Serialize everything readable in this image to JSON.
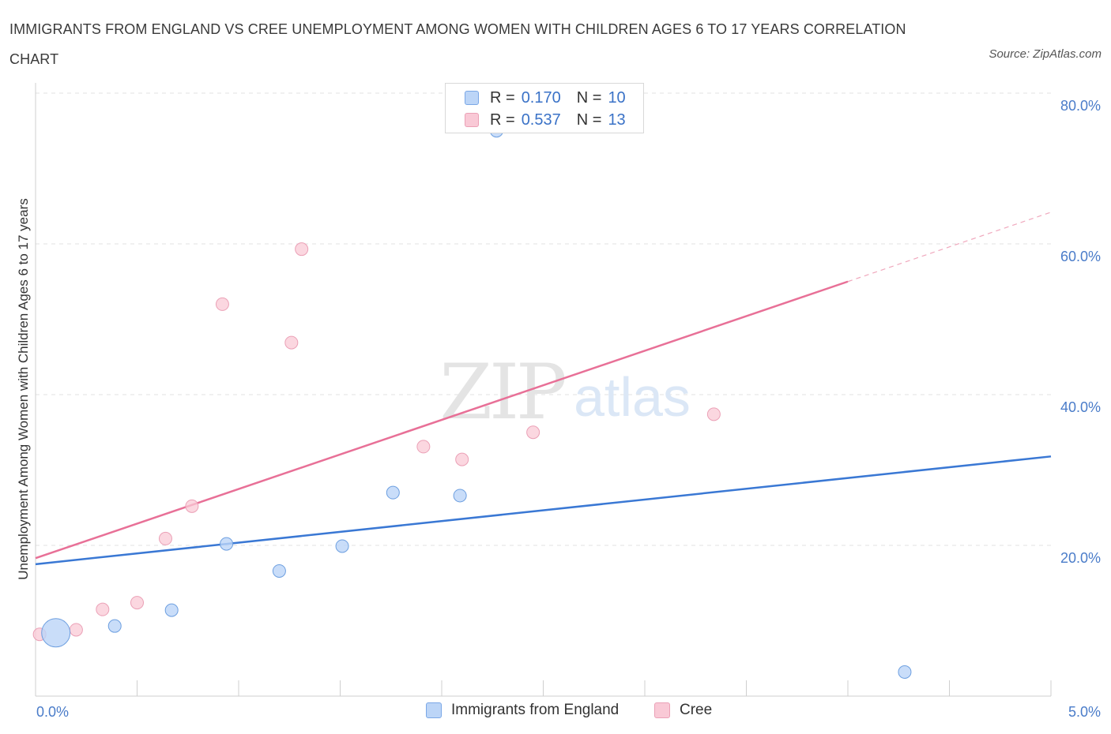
{
  "title": "IMMIGRANTS FROM ENGLAND VS CREE UNEMPLOYMENT AMONG WOMEN WITH CHILDREN AGES 6 TO 17 YEARS CORRELATION CHART",
  "source": "Source: ZipAtlas.com",
  "watermark": {
    "zip": "ZIP",
    "atlas": "atlas"
  },
  "legend_top": [
    {
      "r_label": "R =",
      "r_value": "0.170",
      "n_label": "N =",
      "n_value": "10"
    },
    {
      "r_label": "R =",
      "r_value": "0.537",
      "n_label": "N =",
      "n_value": "13"
    }
  ],
  "legend_bottom": [
    "Immigrants from England",
    "Cree"
  ],
  "colors": {
    "england": "#4a86d8",
    "england_fill": "#bcd5f7",
    "cree": "#e87097",
    "cree_fill": "#f9c9d6",
    "tick": "#4a7cc9"
  },
  "chart_data": {
    "type": "scatter",
    "title": "IMMIGRANTS FROM ENGLAND VS CREE UNEMPLOYMENT AMONG WOMEN WITH CHILDREN AGES 6 TO 17 YEARS CORRELATION CHART",
    "xlabel": "",
    "ylabel": "Unemployment Among Women with Children Ages 6 to 17 years",
    "xlim": [
      0,
      5
    ],
    "ylim": [
      0,
      80
    ],
    "x_tick_labels": [
      "0.0%",
      "5.0%"
    ],
    "y_ticks": [
      20,
      40,
      60,
      80
    ],
    "y_tick_labels": [
      "20.0%",
      "40.0%",
      "60.0%",
      "80.0%"
    ],
    "grid": true,
    "series": [
      {
        "name": "Immigrants from England",
        "r": 0.17,
        "n": 10,
        "points": [
          {
            "x": 0.1,
            "y": 8.4,
            "size": "large"
          },
          {
            "x": 0.39,
            "y": 9.3
          },
          {
            "x": 0.67,
            "y": 11.4
          },
          {
            "x": 0.94,
            "y": 20.2
          },
          {
            "x": 1.2,
            "y": 16.6
          },
          {
            "x": 1.51,
            "y": 19.9
          },
          {
            "x": 1.76,
            "y": 27.0
          },
          {
            "x": 2.09,
            "y": 26.6
          },
          {
            "x": 2.27,
            "y": 75.0
          },
          {
            "x": 4.28,
            "y": 3.2
          }
        ],
        "trend": {
          "x0": 0,
          "y0": 17.5,
          "x1": 5,
          "y1": 31.8
        }
      },
      {
        "name": "Cree",
        "r": 0.537,
        "n": 13,
        "points": [
          {
            "x": 0.02,
            "y": 8.2
          },
          {
            "x": 0.2,
            "y": 8.8
          },
          {
            "x": 0.33,
            "y": 11.5
          },
          {
            "x": 0.5,
            "y": 12.4
          },
          {
            "x": 0.64,
            "y": 20.9
          },
          {
            "x": 0.77,
            "y": 25.2
          },
          {
            "x": 0.92,
            "y": 52.0
          },
          {
            "x": 1.26,
            "y": 46.9
          },
          {
            "x": 1.31,
            "y": 59.3
          },
          {
            "x": 1.91,
            "y": 33.1
          },
          {
            "x": 2.1,
            "y": 31.4
          },
          {
            "x": 2.45,
            "y": 35.0
          },
          {
            "x": 3.34,
            "y": 37.4
          }
        ],
        "trend": {
          "x0": 0,
          "y0": 18.3,
          "x1": 4.0,
          "y1": 55.0
        },
        "trend_dashed_extension": {
          "x0": 4.0,
          "y0": 55.0,
          "x1": 5.0,
          "y1": 64.2
        }
      }
    ]
  }
}
